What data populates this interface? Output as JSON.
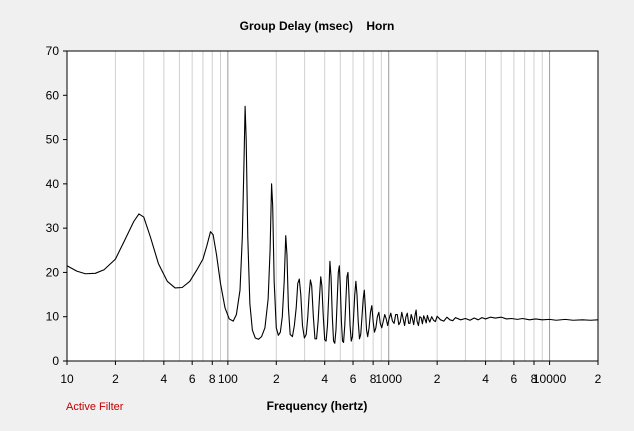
{
  "chart_data": {
    "type": "line",
    "title": "Group Delay (msec)    Horn",
    "xlabel": "Frequency (hertz)",
    "ylabel": "",
    "x_scale": "log",
    "xlim": [
      10,
      20000
    ],
    "ylim": [
      0,
      70
    ],
    "grid": true,
    "y_ticks": [
      0,
      10,
      20,
      30,
      40,
      50,
      60,
      70
    ],
    "x_tick_labels": [
      {
        "value": 10,
        "label": "10"
      },
      {
        "value": 20,
        "label": "2"
      },
      {
        "value": 40,
        "label": "4"
      },
      {
        "value": 60,
        "label": "6"
      },
      {
        "value": 80,
        "label": "8"
      },
      {
        "value": 100,
        "label": "100"
      },
      {
        "value": 200,
        "label": "2"
      },
      {
        "value": 400,
        "label": "4"
      },
      {
        "value": 600,
        "label": "6"
      },
      {
        "value": 800,
        "label": "8"
      },
      {
        "value": 1000,
        "label": "1000"
      },
      {
        "value": 2000,
        "label": "2"
      },
      {
        "value": 4000,
        "label": "4"
      },
      {
        "value": 6000,
        "label": "6"
      },
      {
        "value": 8000,
        "label": "8"
      },
      {
        "value": 10000,
        "label": "10000"
      },
      {
        "value": 20000,
        "label": "2"
      }
    ],
    "series": [
      {
        "color": "#000000",
        "points": [
          [
            10,
            21.5
          ],
          [
            11.5,
            20.3
          ],
          [
            13,
            19.7
          ],
          [
            15,
            19.8
          ],
          [
            17,
            20.6
          ],
          [
            20,
            23.0
          ],
          [
            23,
            27.5
          ],
          [
            26,
            31.5
          ],
          [
            28,
            33.2
          ],
          [
            30,
            32.5
          ],
          [
            33,
            28.0
          ],
          [
            37,
            22.0
          ],
          [
            42,
            18.0
          ],
          [
            47,
            16.5
          ],
          [
            52,
            16.6
          ],
          [
            58,
            18.0
          ],
          [
            64,
            20.5
          ],
          [
            70,
            23.0
          ],
          [
            74,
            26.0
          ],
          [
            78,
            29.2
          ],
          [
            81,
            28.5
          ],
          [
            85,
            24.0
          ],
          [
            90,
            17.5
          ],
          [
            96,
            12.0
          ],
          [
            102,
            9.5
          ],
          [
            108,
            9.0
          ],
          [
            113,
            10.5
          ],
          [
            119,
            16.0
          ],
          [
            123,
            28.0
          ],
          [
            126,
            45.0
          ],
          [
            128,
            57.5
          ],
          [
            130,
            50.0
          ],
          [
            133,
            28.0
          ],
          [
            137,
            13.0
          ],
          [
            142,
            7.0
          ],
          [
            148,
            5.2
          ],
          [
            155,
            4.9
          ],
          [
            162,
            5.5
          ],
          [
            170,
            7.5
          ],
          [
            178,
            14.0
          ],
          [
            183,
            25.0
          ],
          [
            187,
            40.0
          ],
          [
            190,
            35.0
          ],
          [
            194,
            18.0
          ],
          [
            200,
            7.5
          ],
          [
            206,
            5.8
          ],
          [
            212,
            6.5
          ],
          [
            218,
            10.0
          ],
          [
            224,
            18.0
          ],
          [
            229,
            28.3
          ],
          [
            233,
            24.0
          ],
          [
            238,
            12.0
          ],
          [
            244,
            6.0
          ],
          [
            252,
            5.5
          ],
          [
            259,
            8.0
          ],
          [
            266,
            12.0
          ],
          [
            272,
            17.5
          ],
          [
            278,
            18.5
          ],
          [
            284,
            15.0
          ],
          [
            291,
            8.0
          ],
          [
            299,
            5.2
          ],
          [
            307,
            6.0
          ],
          [
            314,
            10.0
          ],
          [
            320,
            15.0
          ],
          [
            326,
            18.3
          ],
          [
            332,
            17.0
          ],
          [
            340,
            10.0
          ],
          [
            348,
            5.0
          ],
          [
            356,
            5.0
          ],
          [
            364,
            9.0
          ],
          [
            372,
            15.0
          ],
          [
            378,
            19.0
          ],
          [
            384,
            17.0
          ],
          [
            392,
            10.0
          ],
          [
            400,
            4.8
          ],
          [
            408,
            4.5
          ],
          [
            416,
            8.0
          ],
          [
            424,
            15.0
          ],
          [
            431,
            22.5
          ],
          [
            438,
            19.0
          ],
          [
            446,
            10.0
          ],
          [
            454,
            4.5
          ],
          [
            462,
            4.0
          ],
          [
            470,
            7.0
          ],
          [
            478,
            13.5
          ],
          [
            486,
            20.0
          ],
          [
            493,
            21.5
          ],
          [
            500,
            17.0
          ],
          [
            508,
            9.0
          ],
          [
            516,
            4.5
          ],
          [
            524,
            4.2
          ],
          [
            533,
            8.0
          ],
          [
            542,
            14.0
          ],
          [
            550,
            19.0
          ],
          [
            558,
            20.0
          ],
          [
            566,
            15.0
          ],
          [
            575,
            8.0
          ],
          [
            585,
            4.5
          ],
          [
            595,
            5.5
          ],
          [
            605,
            10.0
          ],
          [
            615,
            15.0
          ],
          [
            625,
            18.0
          ],
          [
            635,
            15.0
          ],
          [
            646,
            9.0
          ],
          [
            658,
            5.0
          ],
          [
            670,
            6.0
          ],
          [
            682,
            10.0
          ],
          [
            694,
            14.0
          ],
          [
            705,
            16.0
          ],
          [
            716,
            12.0
          ],
          [
            728,
            7.0
          ],
          [
            740,
            5.5
          ],
          [
            755,
            7.5
          ],
          [
            770,
            11.0
          ],
          [
            785,
            12.5
          ],
          [
            800,
            9.0
          ],
          [
            815,
            6.5
          ],
          [
            832,
            7.5
          ],
          [
            850,
            10.0
          ],
          [
            868,
            11.0
          ],
          [
            886,
            8.5
          ],
          [
            905,
            7.5
          ],
          [
            925,
            9.0
          ],
          [
            945,
            10.5
          ],
          [
            965,
            9.5
          ],
          [
            985,
            8.0
          ],
          [
            1005,
            9.5
          ],
          [
            1030,
            10.8
          ],
          [
            1055,
            9.0
          ],
          [
            1080,
            8.5
          ],
          [
            1105,
            10.5
          ],
          [
            1130,
            10.5
          ],
          [
            1155,
            8.2
          ],
          [
            1180,
            8.8
          ],
          [
            1205,
            11.0
          ],
          [
            1230,
            9.5
          ],
          [
            1255,
            8.0
          ],
          [
            1280,
            10.0
          ],
          [
            1305,
            10.8
          ],
          [
            1330,
            8.5
          ],
          [
            1355,
            8.5
          ],
          [
            1380,
            10.5
          ],
          [
            1405,
            9.5
          ],
          [
            1430,
            8.2
          ],
          [
            1455,
            10.2
          ],
          [
            1480,
            11.5
          ],
          [
            1500,
            9.0
          ],
          [
            1530,
            8.0
          ],
          [
            1560,
            10.0
          ],
          [
            1590,
            9.8
          ],
          [
            1620,
            8.4
          ],
          [
            1650,
            10.2
          ],
          [
            1680,
            9.5
          ],
          [
            1710,
            8.6
          ],
          [
            1740,
            10.3
          ],
          [
            1770,
            9.4
          ],
          [
            1800,
            8.8
          ],
          [
            1850,
            10.0
          ],
          [
            1900,
            9.2
          ],
          [
            1950,
            8.9
          ],
          [
            2000,
            10.1
          ],
          [
            2100,
            9.3
          ],
          [
            2200,
            9.0
          ],
          [
            2300,
            9.9
          ],
          [
            2400,
            9.3
          ],
          [
            2500,
            9.1
          ],
          [
            2600,
            9.8
          ],
          [
            2800,
            9.3
          ],
          [
            3000,
            9.6
          ],
          [
            3200,
            9.2
          ],
          [
            3400,
            9.7
          ],
          [
            3600,
            9.3
          ],
          [
            3800,
            9.8
          ],
          [
            4000,
            9.5
          ],
          [
            4300,
            9.9
          ],
          [
            4600,
            9.7
          ],
          [
            5000,
            9.9
          ],
          [
            5400,
            9.5
          ],
          [
            5800,
            9.6
          ],
          [
            6300,
            9.4
          ],
          [
            6800,
            9.6
          ],
          [
            7500,
            9.3
          ],
          [
            8200,
            9.5
          ],
          [
            9000,
            9.3
          ],
          [
            10000,
            9.4
          ],
          [
            11000,
            9.2
          ],
          [
            12500,
            9.4
          ],
          [
            14000,
            9.2
          ],
          [
            16000,
            9.3
          ],
          [
            18000,
            9.2
          ],
          [
            20000,
            9.3
          ]
        ]
      }
    ]
  },
  "footer": {
    "active_filter_label": "Active Filter"
  }
}
